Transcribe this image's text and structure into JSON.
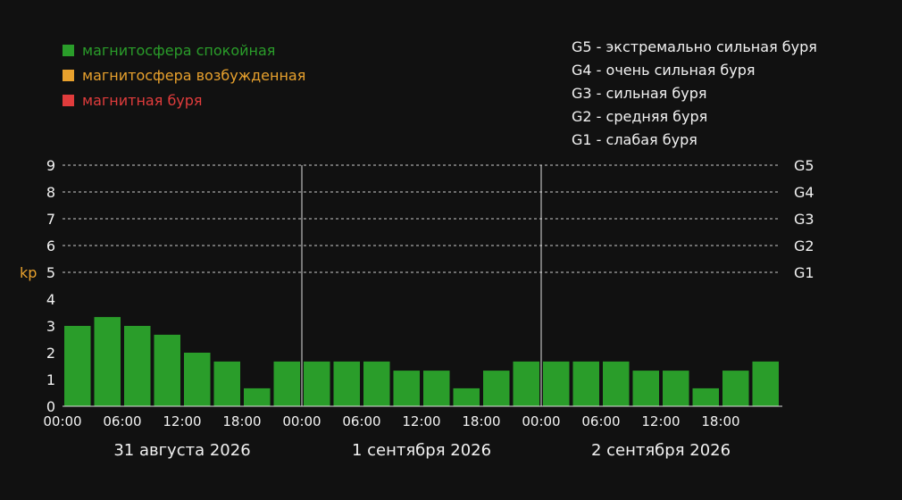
{
  "legend": [
    {
      "label": "магнитосфера спокойная",
      "color": "#2a9d2a"
    },
    {
      "label": "магнитосфера возбужденная",
      "color": "#e8a12d"
    },
    {
      "label": "магнитная буря",
      "color": "#e03c3c"
    }
  ],
  "scale_legend": [
    "G5 - экстремально сильная буря",
    "G4 - очень сильная буря",
    "G3 - сильная буря",
    "G2 - средняя буря",
    "G1 - слабая буря"
  ],
  "chart_data": {
    "type": "bar",
    "ylabel": "kp",
    "ylim": [
      0,
      9
    ],
    "yticks": [
      0,
      1,
      2,
      3,
      4,
      5,
      6,
      7,
      8,
      9
    ],
    "grid": "dashed at 5,6,7,8,9",
    "right_labels": [
      {
        "label": "G5",
        "value": 9
      },
      {
        "label": "G4",
        "value": 8
      },
      {
        "label": "G3",
        "value": 7
      },
      {
        "label": "G2",
        "value": 6
      },
      {
        "label": "G1",
        "value": 5
      }
    ],
    "days": [
      "31 августа 2026",
      "1 сентября 2026",
      "2 сентября 2026"
    ],
    "time_ticks": [
      "00:00",
      "06:00",
      "12:00",
      "18:00"
    ],
    "values": [
      3.0,
      3.33,
      3.0,
      2.67,
      2.0,
      1.67,
      0.67,
      1.67,
      1.67,
      1.67,
      1.67,
      1.33,
      1.33,
      0.67,
      1.33,
      1.67,
      1.67,
      1.67,
      1.67,
      1.33,
      1.33,
      0.67,
      1.33,
      1.67
    ],
    "bar_color": "#2a9d2a",
    "axis_color": "#dddddd",
    "text_color": "#f2f2f2",
    "ylabel_color": "#e8a12d"
  }
}
